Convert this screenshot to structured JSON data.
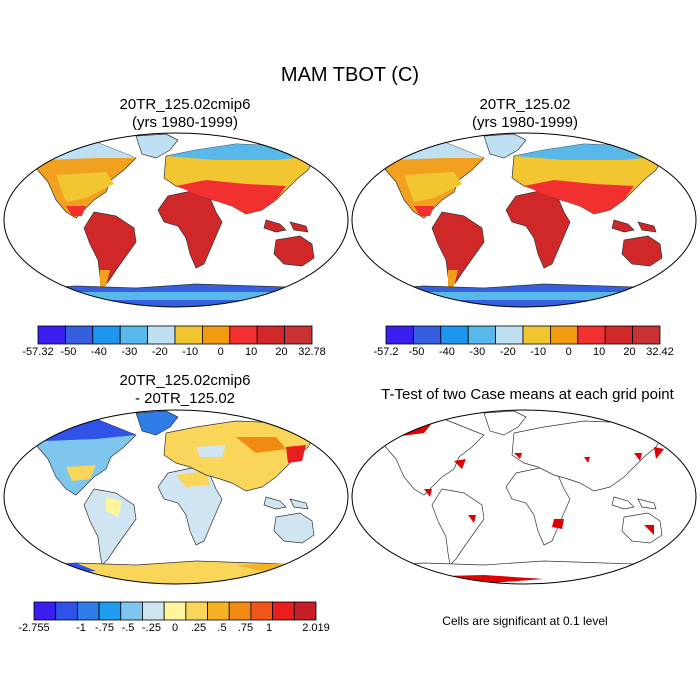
{
  "figure": {
    "title": "MAM TBOT (C)"
  },
  "panels": {
    "top_left": {
      "title_line1": "20TR_125.02cmip6",
      "title_line2": "(yrs 1980-1999)",
      "colorbar": {
        "labels": [
          "-57.32",
          "-50",
          "-40",
          "-30",
          "-20",
          "-10",
          "0",
          "10",
          "20",
          "32.78"
        ],
        "colors": [
          "#3a1ef0",
          "#3460e0",
          "#1f96ee",
          "#58b8ea",
          "#bfe0f2",
          "#f2c630",
          "#f29a10",
          "#f23030",
          "#d02828",
          "#c83232"
        ]
      }
    },
    "top_right": {
      "title_line1": "20TR_125.02",
      "title_line2": "(yrs 1980-1999)",
      "colorbar": {
        "labels": [
          "-57.2",
          "-50",
          "-40",
          "-30",
          "-20",
          "-10",
          "0",
          "10",
          "20",
          "32.42"
        ],
        "colors": [
          "#3a1ef0",
          "#3460e0",
          "#1f96ee",
          "#58b8ea",
          "#bfe0f2",
          "#f2c630",
          "#f29a10",
          "#f23030",
          "#d02828",
          "#c83232"
        ]
      }
    },
    "bottom_left": {
      "title_line1": "20TR_125.02cmip6",
      "title_line2": "- 20TR_125.02",
      "colorbar": {
        "labels": [
          "-2.755",
          "",
          "-1",
          "-.75",
          "-.5",
          "-.25",
          "0",
          ".25",
          ".5",
          ".75",
          "1",
          "",
          "2.019"
        ],
        "colors": [
          "#3a1ef0",
          "#2f52e8",
          "#2f7de8",
          "#1f9ef0",
          "#7fc6ee",
          "#cfe6f2",
          "#fff59c",
          "#f9d65a",
          "#f5b222",
          "#f08a10",
          "#f0561a",
          "#e81e1e",
          "#c81e28"
        ]
      }
    },
    "bottom_right": {
      "title": "T-Test of two Case means at each grid point",
      "note": "Cells are significant at 0.1 level"
    }
  },
  "colors": {
    "warm_land": "#d02828",
    "sig_red": "#e00000",
    "ocean": "#ffffff"
  }
}
